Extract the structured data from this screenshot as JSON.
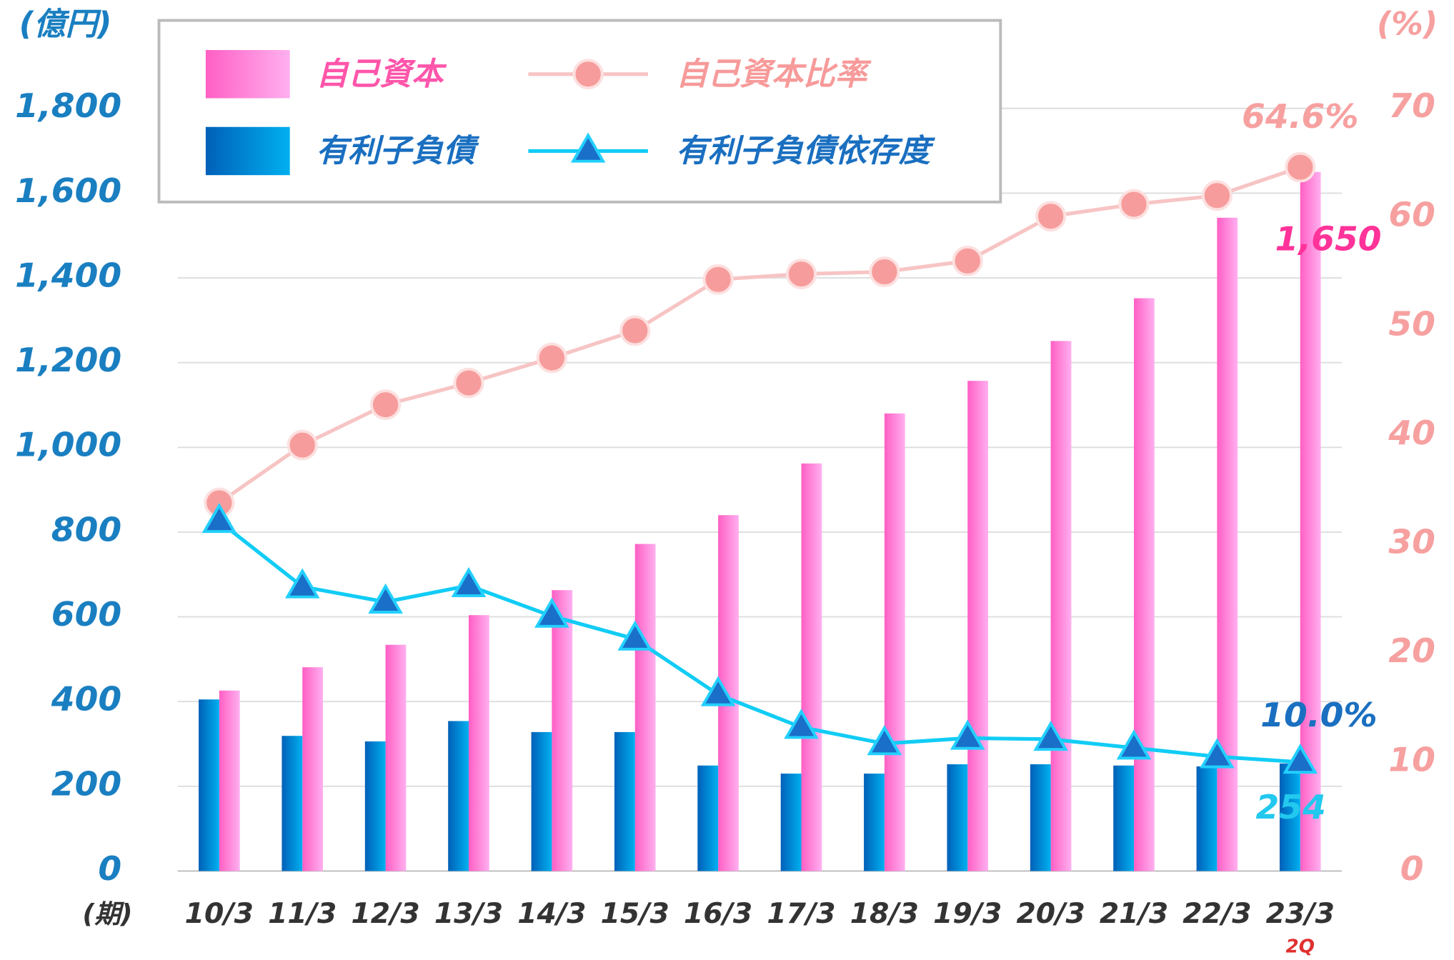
{
  "chart_data": {
    "type": "bar_line",
    "y_unit_label": "(億円)",
    "y2_unit_label": "(%)",
    "x_unit_label": "(期)",
    "annotation": "2Q",
    "categories": [
      "10/3",
      "11/3",
      "12/3",
      "13/3",
      "14/3",
      "15/3",
      "16/3",
      "17/3",
      "18/3",
      "19/3",
      "20/3",
      "21/3",
      "22/3",
      "23/3"
    ],
    "series": [
      {
        "name": "自己資本",
        "kind": "bar",
        "color": "#ff66cc",
        "values": [
          426,
          481,
          534,
          604,
          663,
          772,
          840,
          962,
          1080,
          1157,
          1251,
          1352,
          1542,
          1650
        ],
        "value_labels": [
          null,
          null,
          null,
          null,
          null,
          null,
          null,
          null,
          null,
          null,
          null,
          null,
          null,
          "1,650"
        ]
      },
      {
        "name": "有利子負債",
        "kind": "bar",
        "color": "#0a7fd0",
        "values": [
          405,
          319,
          306,
          354,
          328,
          328,
          249,
          230,
          230,
          252,
          252,
          249,
          247,
          254
        ],
        "value_labels": [
          null,
          null,
          null,
          null,
          null,
          null,
          null,
          null,
          null,
          null,
          null,
          null,
          null,
          "254"
        ]
      },
      {
        "name": "自己資本比率",
        "kind": "line",
        "axis": "y2",
        "color": "#f7c4c4",
        "marker": "circle",
        "values": [
          33.8,
          39.1,
          42.8,
          44.8,
          47.1,
          49.6,
          54.3,
          54.8,
          55.0,
          56.0,
          60.1,
          61.2,
          62.0,
          64.6
        ],
        "value_labels": [
          null,
          null,
          null,
          null,
          null,
          null,
          null,
          null,
          null,
          null,
          null,
          null,
          null,
          "64.6%"
        ]
      },
      {
        "name": "有利子負債依存度",
        "kind": "line",
        "axis": "y2",
        "color": "#11ccf5",
        "marker": "triangle",
        "values": [
          32.1,
          26.1,
          24.7,
          26.2,
          23.4,
          21.3,
          16.2,
          13.2,
          11.7,
          12.2,
          12.1,
          11.3,
          10.5,
          10.0
        ],
        "value_labels": [
          null,
          null,
          null,
          null,
          null,
          null,
          null,
          null,
          null,
          null,
          null,
          null,
          null,
          "10.0%"
        ]
      }
    ],
    "ylim": [
      0,
      1800
    ],
    "yticks": [
      0,
      200,
      400,
      600,
      800,
      {
        "value": 1000,
        "label": "1,000"
      },
      {
        "value": 1200,
        "label": "1,200"
      },
      {
        "value": 1400,
        "label": "1,400"
      },
      {
        "value": 1600,
        "label": "1,600"
      },
      {
        "value": 1800,
        "label": "1,800"
      }
    ],
    "y2lim": [
      0,
      70
    ],
    "y2ticks": [
      0,
      10,
      20,
      30,
      40,
      50,
      60,
      70
    ],
    "grid": true
  }
}
